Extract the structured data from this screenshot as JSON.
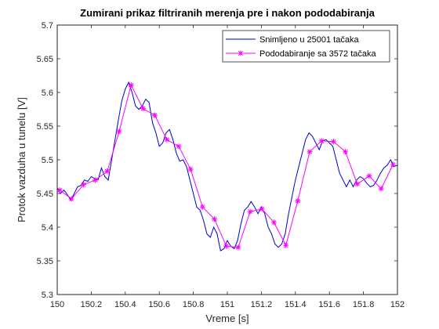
{
  "chart_data": {
    "type": "line",
    "title": "Zumirani prikaz filtriranih merenja pre i nakon pododabiranja",
    "xlabel": "Vreme [s]",
    "ylabel": "Protok vazduha u tunelu [V]",
    "xlim": [
      150,
      152
    ],
    "ylim": [
      5.3,
      5.7
    ],
    "xticks": [
      150,
      150.2,
      150.4,
      150.6,
      150.8,
      151,
      151.2,
      151.4,
      151.6,
      151.8,
      152
    ],
    "xtick_labels": [
      "150",
      "150.2",
      "150.4",
      "150.6",
      "150.8",
      "151",
      "151.2",
      "151.4",
      "151.6",
      "151.8",
      "152"
    ],
    "yticks": [
      5.3,
      5.35,
      5.4,
      5.45,
      5.5,
      5.55,
      5.6,
      5.65,
      5.7
    ],
    "ytick_labels": [
      "5.3",
      "5.35",
      "5.4",
      "5.45",
      "5.5",
      "5.55",
      "5.6",
      "5.65",
      "5.7"
    ],
    "grid": false,
    "legend_position": "top-right",
    "series": [
      {
        "name": "Snimljeno u 25001 tačaka",
        "color": "#0000cc",
        "marker": "none",
        "x": [
          150.0,
          150.02,
          150.04,
          150.06,
          150.08,
          150.1,
          150.12,
          150.14,
          150.16,
          150.18,
          150.2,
          150.22,
          150.24,
          150.26,
          150.28,
          150.3,
          150.32,
          150.34,
          150.36,
          150.38,
          150.4,
          150.42,
          150.44,
          150.46,
          150.48,
          150.5,
          150.52,
          150.54,
          150.56,
          150.58,
          150.6,
          150.62,
          150.64,
          150.66,
          150.68,
          150.7,
          150.72,
          150.74,
          150.76,
          150.78,
          150.8,
          150.82,
          150.84,
          150.86,
          150.88,
          150.9,
          150.92,
          150.94,
          150.96,
          150.98,
          151.0,
          151.02,
          151.04,
          151.06,
          151.08,
          151.1,
          151.12,
          151.14,
          151.16,
          151.18,
          151.2,
          151.22,
          151.24,
          151.26,
          151.28,
          151.3,
          151.32,
          151.34,
          151.36,
          151.38,
          151.4,
          151.42,
          151.44,
          151.46,
          151.48,
          151.5,
          151.52,
          151.54,
          151.56,
          151.58,
          151.6,
          151.62,
          151.64,
          151.66,
          151.68,
          151.7,
          151.72,
          151.74,
          151.76,
          151.78,
          151.8,
          151.82,
          151.84,
          151.86,
          151.88,
          151.9,
          151.92,
          151.94,
          151.96,
          151.98,
          152.0
        ],
        "y": [
          5.458,
          5.45,
          5.455,
          5.448,
          5.44,
          5.45,
          5.46,
          5.462,
          5.47,
          5.468,
          5.475,
          5.472,
          5.47,
          5.488,
          5.475,
          5.47,
          5.5,
          5.53,
          5.56,
          5.588,
          5.605,
          5.615,
          5.6,
          5.58,
          5.575,
          5.58,
          5.59,
          5.585,
          5.555,
          5.54,
          5.52,
          5.525,
          5.54,
          5.545,
          5.53,
          5.51,
          5.498,
          5.5,
          5.49,
          5.47,
          5.45,
          5.43,
          5.425,
          5.41,
          5.39,
          5.385,
          5.4,
          5.39,
          5.365,
          5.368,
          5.38,
          5.372,
          5.368,
          5.38,
          5.405,
          5.425,
          5.43,
          5.438,
          5.43,
          5.42,
          5.43,
          5.42,
          5.4,
          5.39,
          5.375,
          5.37,
          5.375,
          5.39,
          5.42,
          5.445,
          5.47,
          5.49,
          5.51,
          5.53,
          5.54,
          5.535,
          5.525,
          5.515,
          5.528,
          5.53,
          5.525,
          5.52,
          5.5,
          5.48,
          5.47,
          5.46,
          5.47,
          5.46,
          5.47,
          5.475,
          5.472,
          5.465,
          5.46,
          5.462,
          5.47,
          5.48,
          5.488,
          5.492,
          5.5,
          5.49,
          5.492
        ]
      },
      {
        "name": "Pododabiranje sa 3572 tačaka",
        "color": "#ff00ff",
        "marker": "asterisk",
        "x": [
          150.014,
          150.084,
          150.154,
          150.224,
          150.294,
          150.364,
          150.434,
          150.504,
          150.574,
          150.644,
          150.714,
          150.784,
          150.854,
          150.924,
          150.994,
          151.064,
          151.134,
          151.204,
          151.274,
          151.344,
          151.414,
          151.484,
          151.554,
          151.624,
          151.694,
          151.764,
          151.834,
          151.904,
          151.974
        ],
        "y": [
          5.455,
          5.442,
          5.463,
          5.47,
          5.483,
          5.542,
          5.611,
          5.576,
          5.566,
          5.53,
          5.52,
          5.486,
          5.43,
          5.412,
          5.372,
          5.37,
          5.423,
          5.427,
          5.407,
          5.373,
          5.439,
          5.512,
          5.528,
          5.527,
          5.512,
          5.464,
          5.476,
          5.457,
          5.493
        ]
      }
    ]
  }
}
